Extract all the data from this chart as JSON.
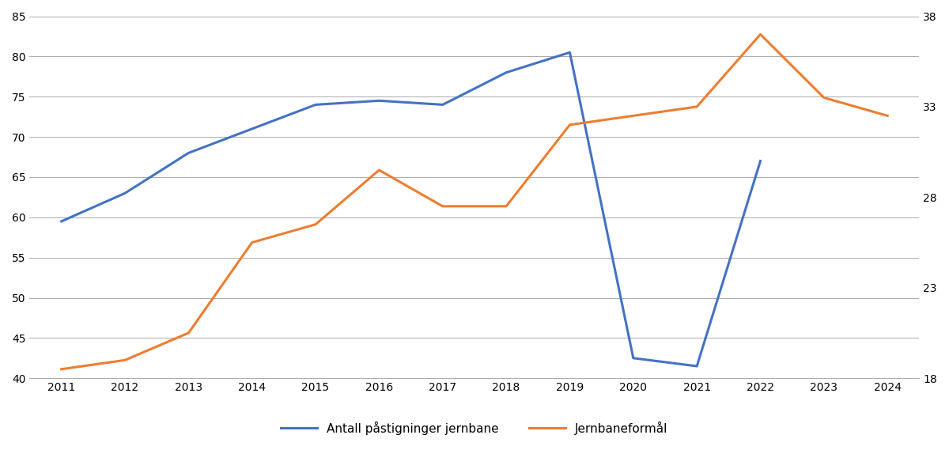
{
  "years": [
    2011,
    2012,
    2013,
    2014,
    2015,
    2016,
    2017,
    2018,
    2019,
    2020,
    2021,
    2022,
    2023,
    2024
  ],
  "blue_series": [
    59.5,
    63.0,
    68.0,
    71.0,
    74.0,
    74.5,
    74.0,
    78.0,
    80.5,
    42.5,
    41.5,
    67.0,
    null,
    null
  ],
  "orange_series": [
    18.5,
    19.0,
    20.5,
    25.5,
    26.5,
    29.5,
    27.5,
    27.5,
    32.0,
    32.5,
    33.0,
    37.0,
    33.5,
    32.5
  ],
  "blue_label": "Antall påstigninger jernbane",
  "orange_label": "Jernbaneformål",
  "left_ylim": [
    40,
    85
  ],
  "right_ylim": [
    18,
    38
  ],
  "left_yticks": [
    40,
    45,
    50,
    55,
    60,
    65,
    70,
    75,
    80,
    85
  ],
  "right_yticks": [
    18,
    23,
    28,
    33,
    38
  ],
  "blue_color": "#4472C4",
  "orange_color": "#ED7D31",
  "background_color": "#FFFFFF",
  "grid_color": "#AAAAAA",
  "line_width": 2.2,
  "tick_fontsize": 10,
  "legend_fontsize": 11
}
